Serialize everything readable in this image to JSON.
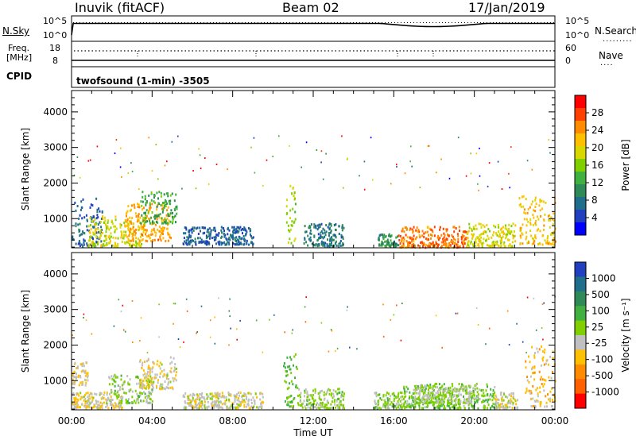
{
  "header": {
    "station": "Inuvik (fitACF)",
    "beam": "Beam 02",
    "date": "17/Jan/2019"
  },
  "sky_panel": {
    "left_label": "N.Sky",
    "right_label": "N.Search",
    "left_ticks": [
      "10^5",
      "10^0"
    ],
    "right_ticks": [
      "10^5",
      "10^0"
    ]
  },
  "freq_panel": {
    "label_line1": "Freq.",
    "label_line2": "[MHz]",
    "right_label": "Nave",
    "left_ticks": [
      "18",
      "8"
    ],
    "right_ticks": [
      "60",
      "0"
    ]
  },
  "cpid": {
    "label": "CPID",
    "program": "twofsound (1-min) -3505"
  },
  "power_colorbar": {
    "title": "Power [dB]",
    "ticks": [
      "28",
      "24",
      "20",
      "16",
      "12",
      "8",
      "4"
    ],
    "colors": [
      "#ff0000",
      "#ff4000",
      "#ff8c00",
      "#ffc000",
      "#d8d800",
      "#80d000",
      "#40b040",
      "#2e8b57",
      "#1e6e8c",
      "#2040c0",
      "#0000ff"
    ]
  },
  "velocity_colorbar": {
    "title": "Velocity [m s⁻¹]",
    "ticks": [
      "1000",
      "500",
      "100",
      "25",
      "-25",
      "-100",
      "-500",
      "-1000"
    ],
    "colors": [
      "#2040c0",
      "#1e6e8c",
      "#2e8b57",
      "#40b040",
      "#80d000",
      "#c0c0c0",
      "#ffc000",
      "#ff8c00",
      "#ff6000",
      "#ff0000"
    ]
  },
  "chart_data": [
    {
      "type": "heatmap",
      "panel": "power",
      "xlabel": "Time UT",
      "ylabel": "Slant Range [km]",
      "xlim": [
        "00:00",
        "24:00"
      ],
      "ylim": [
        180,
        4600
      ],
      "yticks": [
        1000,
        2000,
        3000,
        4000
      ],
      "xticks": [
        "00:00",
        "04:00",
        "08:00",
        "12:00",
        "16:00",
        "20:00",
        "00:00"
      ],
      "colorbar": "Power [dB]",
      "clim": [
        0,
        30
      ],
      "regions": [
        {
          "t0": 0.0,
          "t1": 1.5,
          "r0": 250,
          "r1": 1600,
          "v": 6
        },
        {
          "t0": 0.8,
          "t1": 3.6,
          "r0": 250,
          "r1": 1100,
          "v": 18
        },
        {
          "t0": 2.6,
          "t1": 4.9,
          "r0": 400,
          "r1": 1500,
          "v": 22
        },
        {
          "t0": 3.4,
          "t1": 5.2,
          "r0": 900,
          "r1": 1800,
          "v": 12
        },
        {
          "t0": 5.5,
          "t1": 9.0,
          "r0": 300,
          "r1": 800,
          "v": 6
        },
        {
          "t0": 10.6,
          "t1": 11.1,
          "r0": 300,
          "r1": 2000,
          "v": 16
        },
        {
          "t0": 11.5,
          "t1": 13.5,
          "r0": 250,
          "r1": 900,
          "v": 8
        },
        {
          "t0": 15.2,
          "t1": 16.2,
          "r0": 250,
          "r1": 600,
          "v": 10
        },
        {
          "t0": 16.2,
          "t1": 19.6,
          "r0": 220,
          "r1": 800,
          "v": 24
        },
        {
          "t0": 19.6,
          "t1": 22.0,
          "r0": 250,
          "r1": 900,
          "v": 18
        },
        {
          "t0": 22.2,
          "t1": 24.0,
          "r0": 300,
          "r1": 1700,
          "v": 20
        }
      ]
    },
    {
      "type": "heatmap",
      "panel": "velocity",
      "xlabel": "Time UT",
      "ylabel": "Slant Range [km]",
      "xlim": [
        "00:00",
        "24:00"
      ],
      "ylim": [
        180,
        4600
      ],
      "yticks": [
        1000,
        2000,
        3000,
        4000
      ],
      "xticks": [
        "00:00",
        "04:00",
        "08:00",
        "12:00",
        "16:00",
        "20:00",
        "00:00"
      ],
      "colorbar": "Velocity [m s⁻¹]",
      "clim": [
        -1000,
        1000
      ],
      "regions": [
        {
          "t0": 0.0,
          "t1": 0.8,
          "r0": 900,
          "r1": 1600,
          "v": -200
        },
        {
          "t0": 0.0,
          "t1": 2.5,
          "r0": 250,
          "r1": 700,
          "v": -150
        },
        {
          "t0": 1.8,
          "t1": 4.0,
          "r0": 400,
          "r1": 1200,
          "v": 60
        },
        {
          "t0": 3.3,
          "t1": 5.2,
          "r0": 800,
          "r1": 1700,
          "v": -150
        },
        {
          "t0": 5.5,
          "t1": 9.5,
          "r0": 250,
          "r1": 700,
          "v": -120
        },
        {
          "t0": 10.5,
          "t1": 11.2,
          "r0": 300,
          "r1": 1800,
          "v": 200
        },
        {
          "t0": 11.2,
          "t1": 13.5,
          "r0": 250,
          "r1": 800,
          "v": 40
        },
        {
          "t0": 15.0,
          "t1": 16.4,
          "r0": 250,
          "r1": 700,
          "v": 80
        },
        {
          "t0": 16.4,
          "t1": 21.0,
          "r0": 250,
          "r1": 950,
          "v": 150
        },
        {
          "t0": 17.0,
          "t1": 20.0,
          "r0": 400,
          "r1": 900,
          "v": 0
        },
        {
          "t0": 21.0,
          "t1": 22.2,
          "r0": 250,
          "r1": 700,
          "v": -120
        },
        {
          "t0": 22.5,
          "t1": 24.0,
          "r0": 300,
          "r1": 2000,
          "v": -300
        }
      ]
    }
  ]
}
